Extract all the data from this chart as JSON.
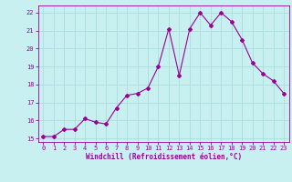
{
  "x": [
    0,
    1,
    2,
    3,
    4,
    5,
    6,
    7,
    8,
    9,
    10,
    11,
    12,
    13,
    14,
    15,
    16,
    17,
    18,
    19,
    20,
    21,
    22,
    23
  ],
  "y": [
    15.1,
    15.1,
    15.5,
    15.5,
    16.1,
    15.9,
    15.8,
    16.7,
    17.4,
    17.5,
    17.8,
    19.0,
    21.1,
    18.5,
    21.1,
    22.0,
    21.3,
    22.0,
    21.5,
    20.5,
    19.2,
    18.6,
    18.2,
    17.5
  ],
  "line_color": "#990099",
  "marker": "D",
  "marker_size": 2.0,
  "bg_color": "#c8f0f0",
  "grid_color": "#aadddd",
  "xlabel": "Windchill (Refroidissement éolien,°C)",
  "xlabel_color": "#990099",
  "tick_color": "#990099",
  "label_color": "#990099",
  "ylim": [
    14.8,
    22.4
  ],
  "xlim": [
    -0.5,
    23.5
  ],
  "yticks": [
    15,
    16,
    17,
    18,
    19,
    20,
    21,
    22
  ],
  "xticks": [
    0,
    1,
    2,
    3,
    4,
    5,
    6,
    7,
    8,
    9,
    10,
    11,
    12,
    13,
    14,
    15,
    16,
    17,
    18,
    19,
    20,
    21,
    22,
    23
  ],
  "tick_fontsize": 5.0,
  "xlabel_fontsize": 5.5,
  "linewidth": 0.8
}
